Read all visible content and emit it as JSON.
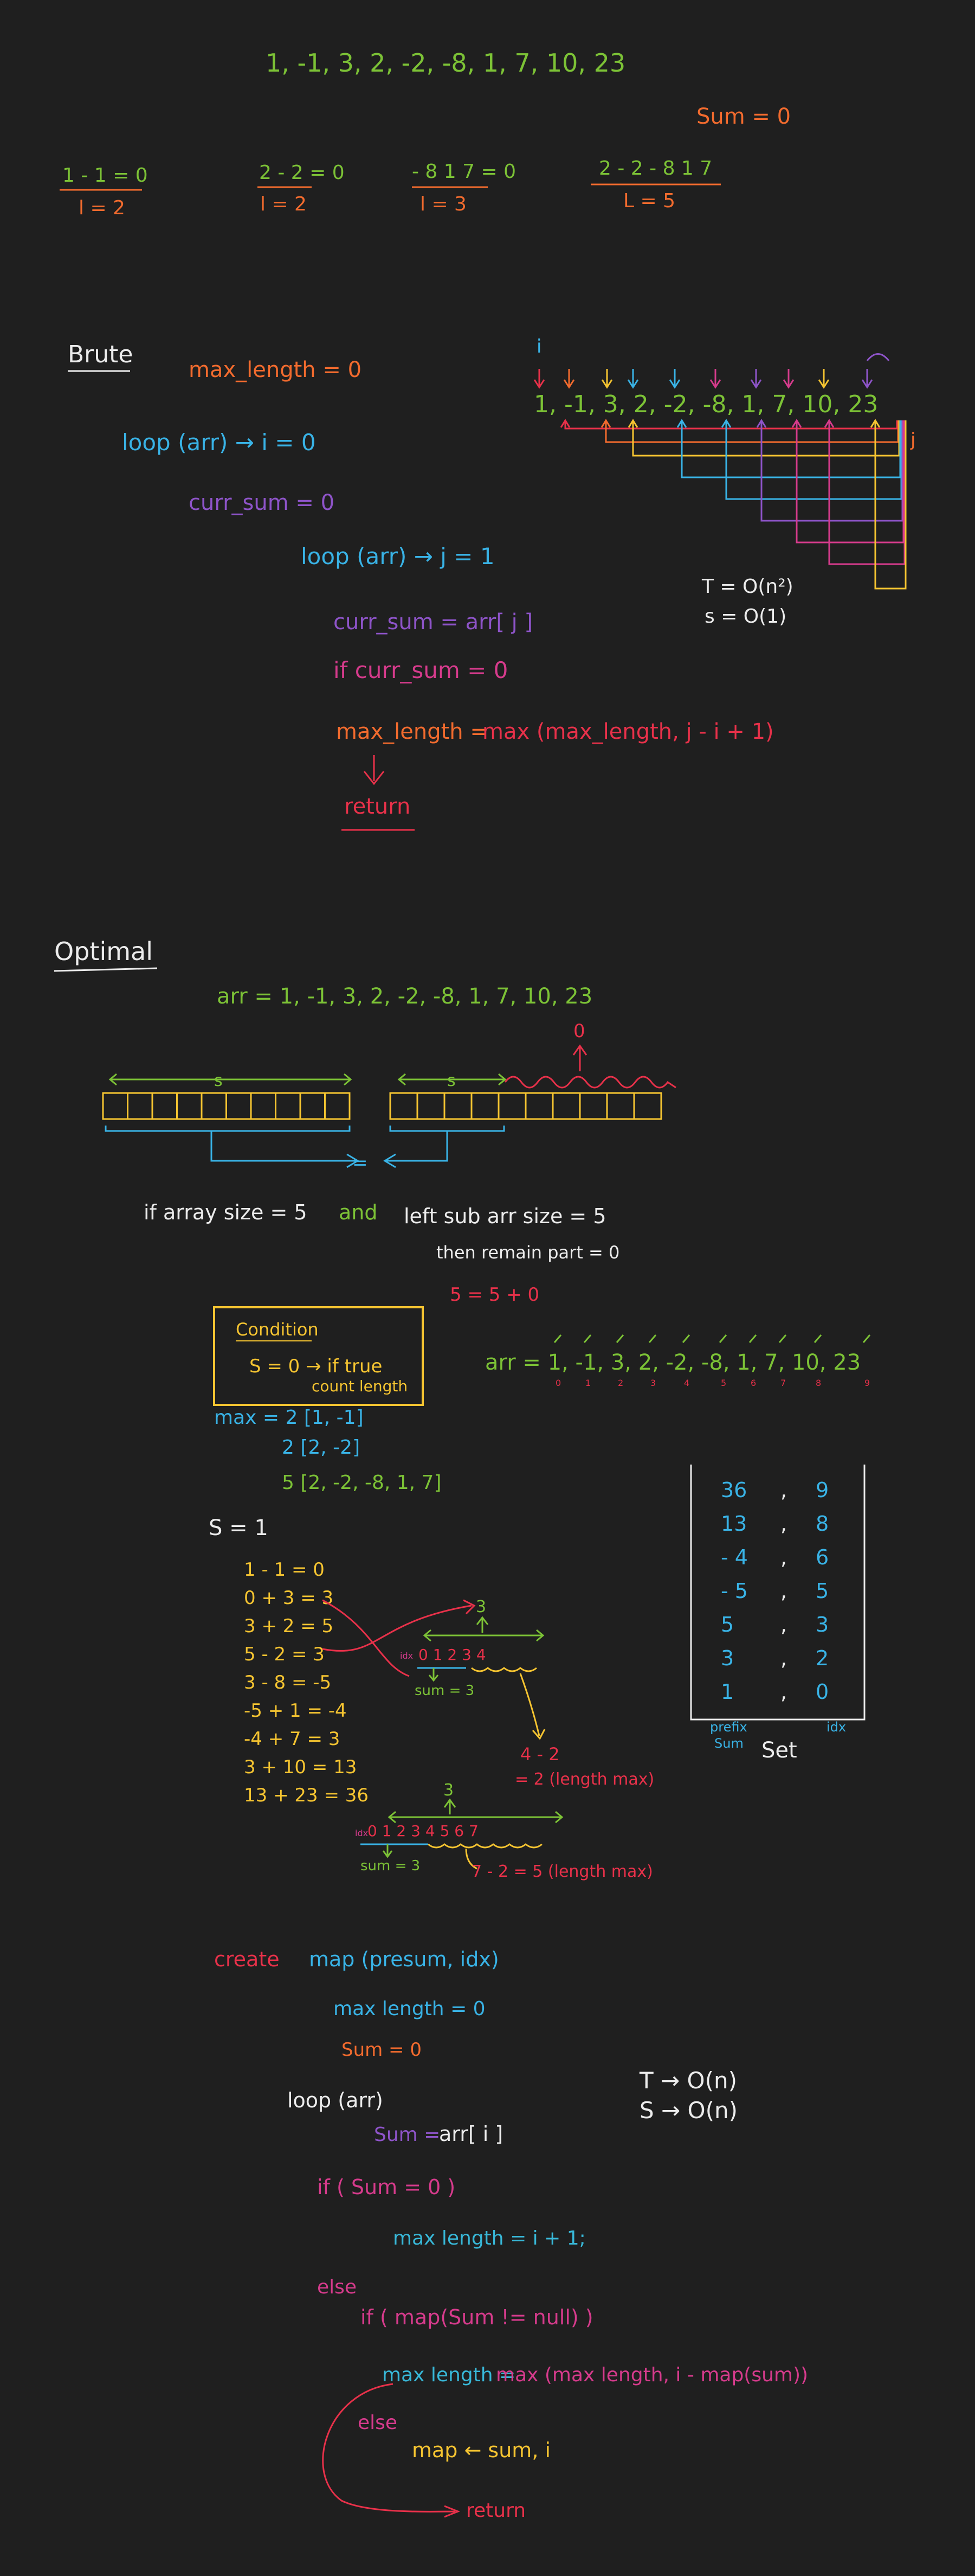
{
  "colors": {
    "bg": "#1f1f1f",
    "green": "#7cc236",
    "orange": "#f26b2e",
    "yellow": "#f5c431",
    "red": "#e8314a",
    "blue": "#39b3e6",
    "purple": "#8e54c9",
    "white": "#ececec",
    "magenta": "#d63b8c",
    "cyan": "#38b8d8"
  },
  "top": {
    "array": "1, -1, 3, 2, -2, -8, 1, 7, 10, 23",
    "sum": "Sum = 0",
    "ex1_top": "1 - 1 = 0",
    "ex1_bot": "l = 2",
    "ex2_top": "2 - 2 = 0",
    "ex2_bot": "l = 2",
    "ex3_top": "- 8  1  7 = 0",
    "ex3_bot": "l = 3",
    "ex4_top": "2 - 2 - 8  1  7",
    "ex4_bot": "L = 5"
  },
  "brute": {
    "title": "Brute",
    "l1": "max_length = 0",
    "l2": "loop (arr) → i = 0",
    "l3": "curr_sum = 0",
    "l4": "loop (arr) → j = 1",
    "l5": "curr_sum = arr[ j ]",
    "l6": "if curr_sum = 0",
    "l7a": "max_length = ",
    "l7b": "max (max_length, j - i + 1)",
    "ret": "return",
    "arr": "1, -1, 3, 2, -2, -8, 1, 7, 10, 23",
    "i": "i",
    "j": "j",
    "t": "T = O(n²)",
    "s": "s = O(1)"
  },
  "optimal": {
    "title": "Optimal",
    "arr": "arr = 1, -1, 3, 2, -2, -8, 1, 7, 10, 23",
    "s1": "s",
    "s2": "s",
    "zero": "0",
    "eq": "=",
    "if1": "if array size = 5",
    "and": "and",
    "left": "left sub arr size = 5",
    "rem": "then remain part = 0",
    "sum5": "5 = 5 + 0",
    "cond_title": "Condition",
    "cond_body": "S = 0 → if true",
    "cond_body2": "count length",
    "arr2": "arr = 1, -1, 3, 2, -2, -8, 1, 7, 10, 23",
    "idx": [
      "0",
      "1",
      "2",
      "3",
      "4",
      "5",
      "6",
      "7",
      "8",
      "9"
    ],
    "max_label": "max = 2 [1, -1]",
    "max2": "2 [2, -2]",
    "max3": "5 [2, -2, -8, 1, 7]",
    "s_eq": "S = 1",
    "steps": [
      "1 - 1 = 0",
      "0 + 3 = 3",
      "3 + 2 = 5",
      "5 - 2 = 3",
      "3 - 8 = -5",
      "-5 + 1 = -4",
      "-4 + 7 = 3",
      "3 + 10 = 13",
      "13 + 23 = 36"
    ],
    "table_rows": [
      [
        "36",
        "9"
      ],
      [
        "13",
        "8"
      ],
      [
        "- 4",
        "6"
      ],
      [
        "- 5",
        "5"
      ],
      [
        "5",
        "3"
      ],
      [
        "3",
        "2"
      ],
      [
        "1",
        "0"
      ]
    ],
    "table_prefix": "prefix",
    "table_sum": "Sum",
    "table_idx": "idx",
    "set_label": "Set",
    "mini1_top": "3",
    "mini1_idx": "0  1  2  3  4",
    "mini1_sum": "sum = 3",
    "mini1_res1": "4 - 2",
    "mini1_res2": "= 2 (length max)",
    "mini2_top": "3",
    "mini2_idx": "0  1  2  3  4  5  6  7",
    "mini2_sum": "sum = 3",
    "mini2_res": "7 - 2 = 5 (length max)",
    "idx_tiny": "idx"
  },
  "code": {
    "create": "create",
    "map": "map (presum, idx)",
    "l1": "max length = 0",
    "l2": "Sum = 0",
    "l3": "loop (arr)",
    "l4a": "Sum = ",
    "l4b": "arr[ i ]",
    "l5": "if ( Sum = 0 )",
    "l6": "max length = i + 1;",
    "l7": "else",
    "l8": "if ( map(Sum != null) )",
    "l9a": "max length = ",
    "l9b": "max (max length, i - map(sum))",
    "l10": "else",
    "l11": "map ← sum, i",
    "ret": "return",
    "t": "T → O(n)",
    "s": "S → O(n)"
  }
}
